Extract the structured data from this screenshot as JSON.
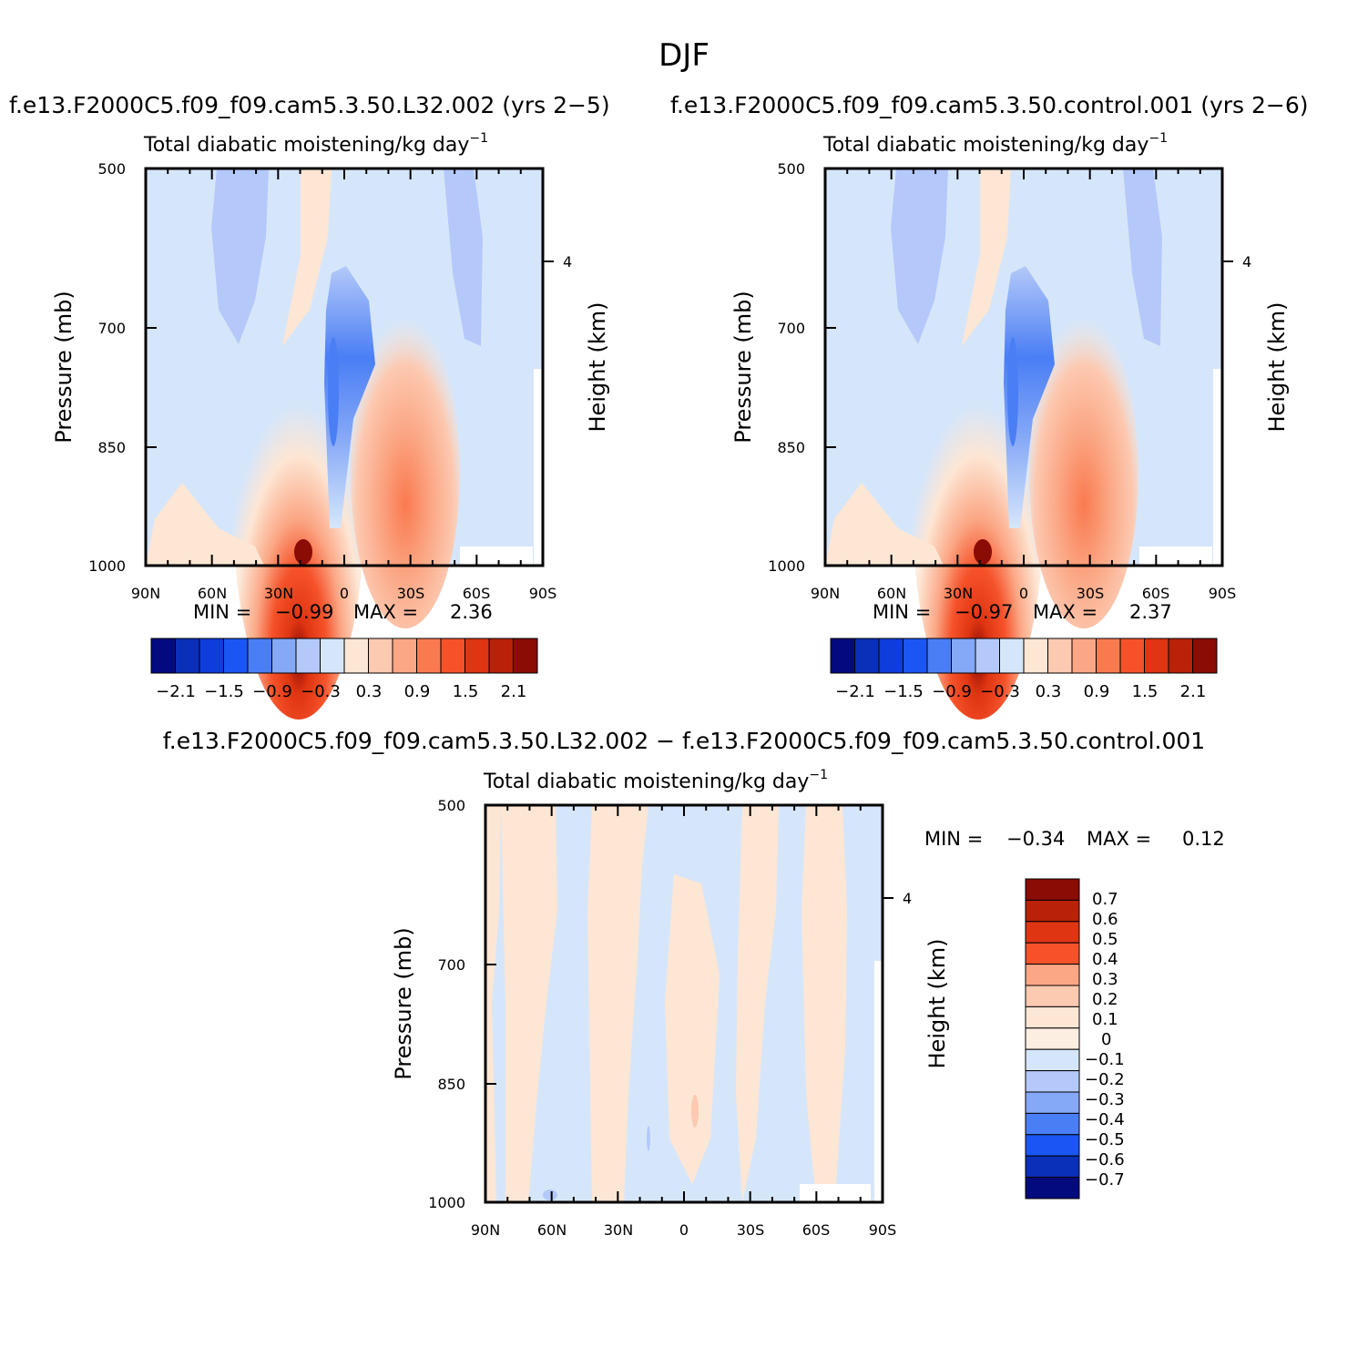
{
  "figure": {
    "title": "DJF"
  },
  "chart_data": [
    {
      "type": "heatmap",
      "case_title": "f.e13.F2000C5.f09_f09.cam5.3.50.L32.002  (yrs 2−5)",
      "title": "Total diabatic moistening/kg day",
      "title_exponent": "−1",
      "xlabel": "",
      "ylabel": "Pressure (mb)",
      "right_ylabel": "Height (km)",
      "x_ticks": [
        "90N",
        "60N",
        "30N",
        "0",
        "30S",
        "60S",
        "90S"
      ],
      "y_ticks": [
        "500",
        "700",
        "850",
        "1000"
      ],
      "right_ticks": [
        "4"
      ],
      "min_label": "MIN =",
      "min_value": "−0.99",
      "max_label": "MAX =",
      "max_value": "2.36",
      "colorbar_labels": [
        "−2.1",
        "−1.5",
        "−0.9",
        "−0.3",
        "0.3",
        "0.9",
        "1.5",
        "2.1"
      ],
      "colorbar_colors": [
        "#030a7e",
        "#0a2fb8",
        "#0f3ddc",
        "#1b56f4",
        "#4a7ef5",
        "#85a8f7",
        "#b4c9f9",
        "#d6e6fa",
        "#fde6d4",
        "#fcc9b1",
        "#fba785",
        "#fa7a50",
        "#f5522a",
        "#df3512",
        "#b92208",
        "#8a0c04"
      ],
      "levels": [
        -2.1,
        -1.8,
        -1.5,
        -1.2,
        -0.9,
        -0.6,
        -0.3,
        0,
        0.3,
        0.6,
        0.9,
        1.2,
        1.5,
        1.8,
        2.1
      ],
      "ylim": [
        1000,
        500
      ],
      "xlim": [
        90,
        -90
      ]
    },
    {
      "type": "heatmap",
      "case_title": "f.e13.F2000C5.f09_f09.cam5.3.50.control.001  (yrs 2−6)",
      "title": "Total diabatic moistening/kg day",
      "title_exponent": "−1",
      "xlabel": "",
      "ylabel": "Pressure (mb)",
      "right_ylabel": "Height (km)",
      "x_ticks": [
        "90N",
        "60N",
        "30N",
        "0",
        "30S",
        "60S",
        "90S"
      ],
      "y_ticks": [
        "500",
        "700",
        "850",
        "1000"
      ],
      "right_ticks": [
        "4"
      ],
      "min_label": "MIN =",
      "min_value": "−0.97",
      "max_label": "MAX =",
      "max_value": "2.37",
      "colorbar_labels": [
        "−2.1",
        "−1.5",
        "−0.9",
        "−0.3",
        "0.3",
        "0.9",
        "1.5",
        "2.1"
      ],
      "colorbar_colors": [
        "#030a7e",
        "#0a2fb8",
        "#0f3ddc",
        "#1b56f4",
        "#4a7ef5",
        "#85a8f7",
        "#b4c9f9",
        "#d6e6fa",
        "#fde6d4",
        "#fcc9b1",
        "#fba785",
        "#fa7a50",
        "#f5522a",
        "#df3512",
        "#b92208",
        "#8a0c04"
      ],
      "levels": [
        -2.1,
        -1.8,
        -1.5,
        -1.2,
        -0.9,
        -0.6,
        -0.3,
        0,
        0.3,
        0.6,
        0.9,
        1.2,
        1.5,
        1.8,
        2.1
      ],
      "ylim": [
        1000,
        500
      ],
      "xlim": [
        90,
        -90
      ]
    },
    {
      "type": "heatmap",
      "case_title": "f.e13.F2000C5.f09_f09.cam5.3.50.L32.002 − f.e13.F2000C5.f09_f09.cam5.3.50.control.001",
      "title": "Total diabatic moistening/kg day",
      "title_exponent": "−1",
      "xlabel": "",
      "ylabel": "Pressure (mb)",
      "right_ylabel": "Height (km)",
      "x_ticks": [
        "90N",
        "60N",
        "30N",
        "0",
        "30S",
        "60S",
        "90S"
      ],
      "y_ticks": [
        "500",
        "700",
        "850",
        "1000"
      ],
      "right_ticks": [
        "4"
      ],
      "min_label": "MIN =",
      "min_value": "−0.34",
      "max_label": "MAX =",
      "max_value": "0.12",
      "colorbar_labels": [
        "0.7",
        "0.6",
        "0.5",
        "0.4",
        "0.3",
        "0.2",
        "0.1",
        "0",
        "−0.1",
        "−0.2",
        "−0.3",
        "−0.4",
        "−0.5",
        "−0.6",
        "−0.7"
      ],
      "colorbar_colors": [
        "#8a0c04",
        "#b92208",
        "#df3512",
        "#f5522a",
        "#fba785",
        "#fcc9b1",
        "#fde6d4",
        "#fdeee2",
        "#d6e6fa",
        "#b4c9f9",
        "#85a8f7",
        "#4a7ef5",
        "#1b56f4",
        "#0a2fb8",
        "#030a7e"
      ],
      "levels": [
        0.7,
        0.6,
        0.5,
        0.4,
        0.3,
        0.2,
        0.1,
        0,
        -0.1,
        -0.2,
        -0.3,
        -0.4,
        -0.5,
        -0.6,
        -0.7
      ],
      "ylim": [
        1000,
        500
      ],
      "xlim": [
        90,
        -90
      ]
    }
  ]
}
